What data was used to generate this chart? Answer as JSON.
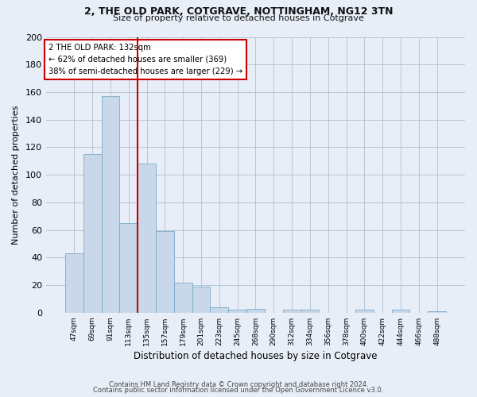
{
  "title1": "2, THE OLD PARK, COTGRAVE, NOTTINGHAM, NG12 3TN",
  "title2": "Size of property relative to detached houses in Cotgrave",
  "xlabel": "Distribution of detached houses by size in Cotgrave",
  "ylabel": "Number of detached properties",
  "footer1": "Contains HM Land Registry data © Crown copyright and database right 2024.",
  "footer2": "Contains public sector information licensed under the Open Government Licence v3.0.",
  "annotation_line1": "2 THE OLD PARK: 132sqm",
  "annotation_line2": "← 62% of detached houses are smaller (369)",
  "annotation_line3": "38% of semi-detached houses are larger (229) →",
  "bar_labels": [
    "47sqm",
    "69sqm",
    "91sqm",
    "113sqm",
    "135sqm",
    "157sqm",
    "179sqm",
    "201sqm",
    "223sqm",
    "245sqm",
    "268sqm",
    "290sqm",
    "312sqm",
    "334sqm",
    "356sqm",
    "378sqm",
    "400sqm",
    "422sqm",
    "444sqm",
    "466sqm",
    "488sqm"
  ],
  "bar_values": [
    43,
    115,
    157,
    65,
    108,
    59,
    22,
    19,
    4,
    2,
    3,
    0,
    2,
    2,
    0,
    0,
    2,
    0,
    2,
    0,
    1
  ],
  "bar_color": "#c8d8ea",
  "bar_edge_color": "#7aaac8",
  "bar_width": 1.0,
  "vline_color": "#cc0000",
  "bg_color": "#e8eef8",
  "annotation_box_color": "#ffffff",
  "annotation_box_edge": "#cc0000",
  "ylim": [
    0,
    200
  ],
  "yticks": [
    0,
    20,
    40,
    60,
    80,
    100,
    120,
    140,
    160,
    180,
    200
  ],
  "grid_color": "#b0bfd0",
  "vline_index": 3.5
}
